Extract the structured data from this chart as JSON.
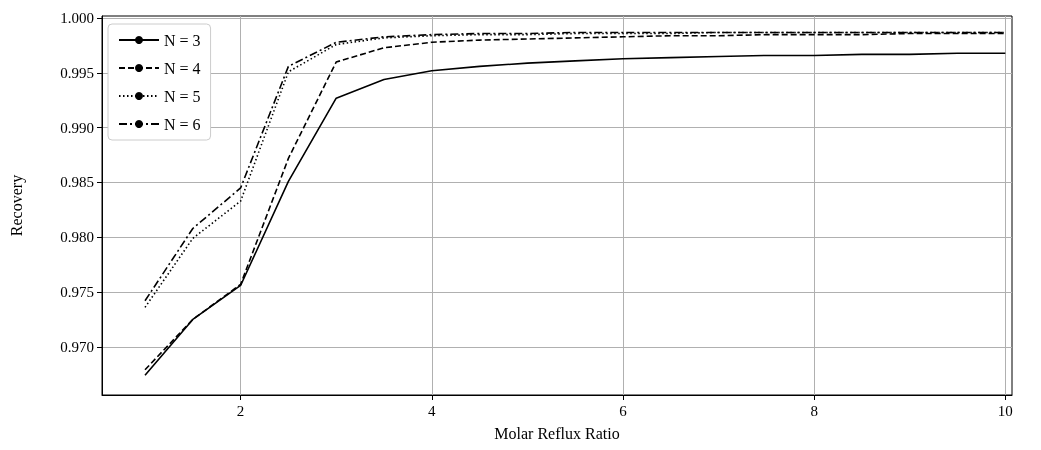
{
  "chart_data": {
    "type": "line",
    "xlabel": "Molar Reflux Ratio",
    "ylabel": "Recovery",
    "x": [
      1,
      1.5,
      2,
      2.5,
      3,
      3.5,
      4,
      4.5,
      5,
      5.5,
      6,
      6.5,
      7,
      7.5,
      8,
      8.5,
      9,
      9.5,
      10
    ],
    "series": [
      {
        "name": "N = 3",
        "color": "#000000",
        "line_style": "solid",
        "values": [
          0.9674,
          0.9725,
          0.9756,
          0.9851,
          0.9927,
          0.9944,
          0.9952,
          0.9956,
          0.9959,
          0.9961,
          0.9963,
          0.9964,
          0.9965,
          0.9966,
          0.9966,
          0.9967,
          0.9967,
          0.9968,
          0.9968
        ]
      },
      {
        "name": "N = 4",
        "color": "#000000",
        "line_style": "dashed",
        "values": [
          0.9679,
          0.9725,
          0.9757,
          0.9872,
          0.996,
          0.9973,
          0.9978,
          0.998,
          0.9981,
          0.9982,
          0.9983,
          0.9984,
          0.9984,
          0.9985,
          0.9985,
          0.9985,
          0.9986,
          0.9986,
          0.9986
        ]
      },
      {
        "name": "N = 5",
        "color": "#000000",
        "line_style": "dotted",
        "values": [
          0.9736,
          0.9799,
          0.9833,
          0.9951,
          0.9976,
          0.9982,
          0.9984,
          0.9985,
          0.9985,
          0.9986,
          0.9986,
          0.9986,
          0.9987,
          0.9987,
          0.9987,
          0.9987,
          0.9987,
          0.9987,
          0.9987
        ]
      },
      {
        "name": "N = 6",
        "color": "#000000",
        "line_style": "dashdot",
        "values": [
          0.9742,
          0.9808,
          0.9845,
          0.9956,
          0.9978,
          0.9983,
          0.9985,
          0.9986,
          0.9986,
          0.9987,
          0.9987,
          0.9987,
          0.9987,
          0.9987,
          0.9987,
          0.9987,
          0.9987,
          0.9987,
          0.9987
        ]
      }
    ],
    "xlim": [
      0.55,
      10.07
    ],
    "xticks": [
      2,
      4,
      6,
      8,
      10
    ],
    "ylim": [
      0.9656,
      1.0002
    ],
    "yticks": [
      {
        "value": 0.97,
        "label": "0.970"
      },
      {
        "value": 0.975,
        "label": "0.975"
      },
      {
        "value": 0.98,
        "label": "0.980"
      },
      {
        "value": 0.985,
        "label": "0.985"
      },
      {
        "value": 0.99,
        "label": "0.990"
      },
      {
        "value": 0.995,
        "label": "0.995"
      },
      {
        "value": 1.0,
        "label": "1.000"
      }
    ],
    "grid": true,
    "legend": "top left",
    "marker": "none"
  }
}
